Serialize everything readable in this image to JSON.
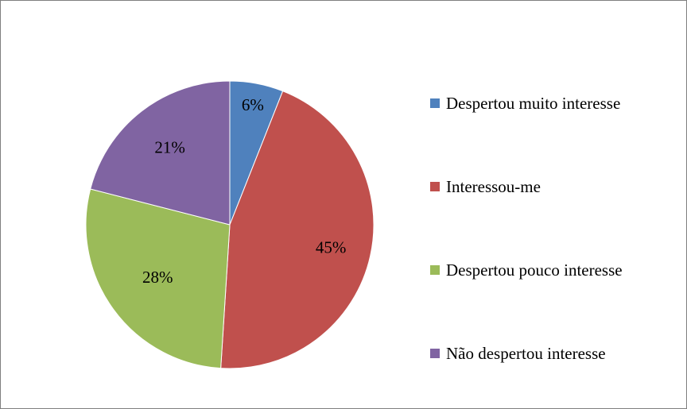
{
  "chart_data": {
    "type": "pie",
    "categories": [
      "Despertou muito interesse",
      "Interessou-me",
      "Despertou pouco interesse",
      "Não despertou interesse"
    ],
    "values": [
      6,
      45,
      28,
      21
    ],
    "labels": [
      "6%",
      "45%",
      "28%",
      "21%"
    ],
    "colors": [
      "#4f81bd",
      "#c0504d",
      "#9bbb59",
      "#8064a2"
    ],
    "title": "",
    "legend_position": "right"
  }
}
